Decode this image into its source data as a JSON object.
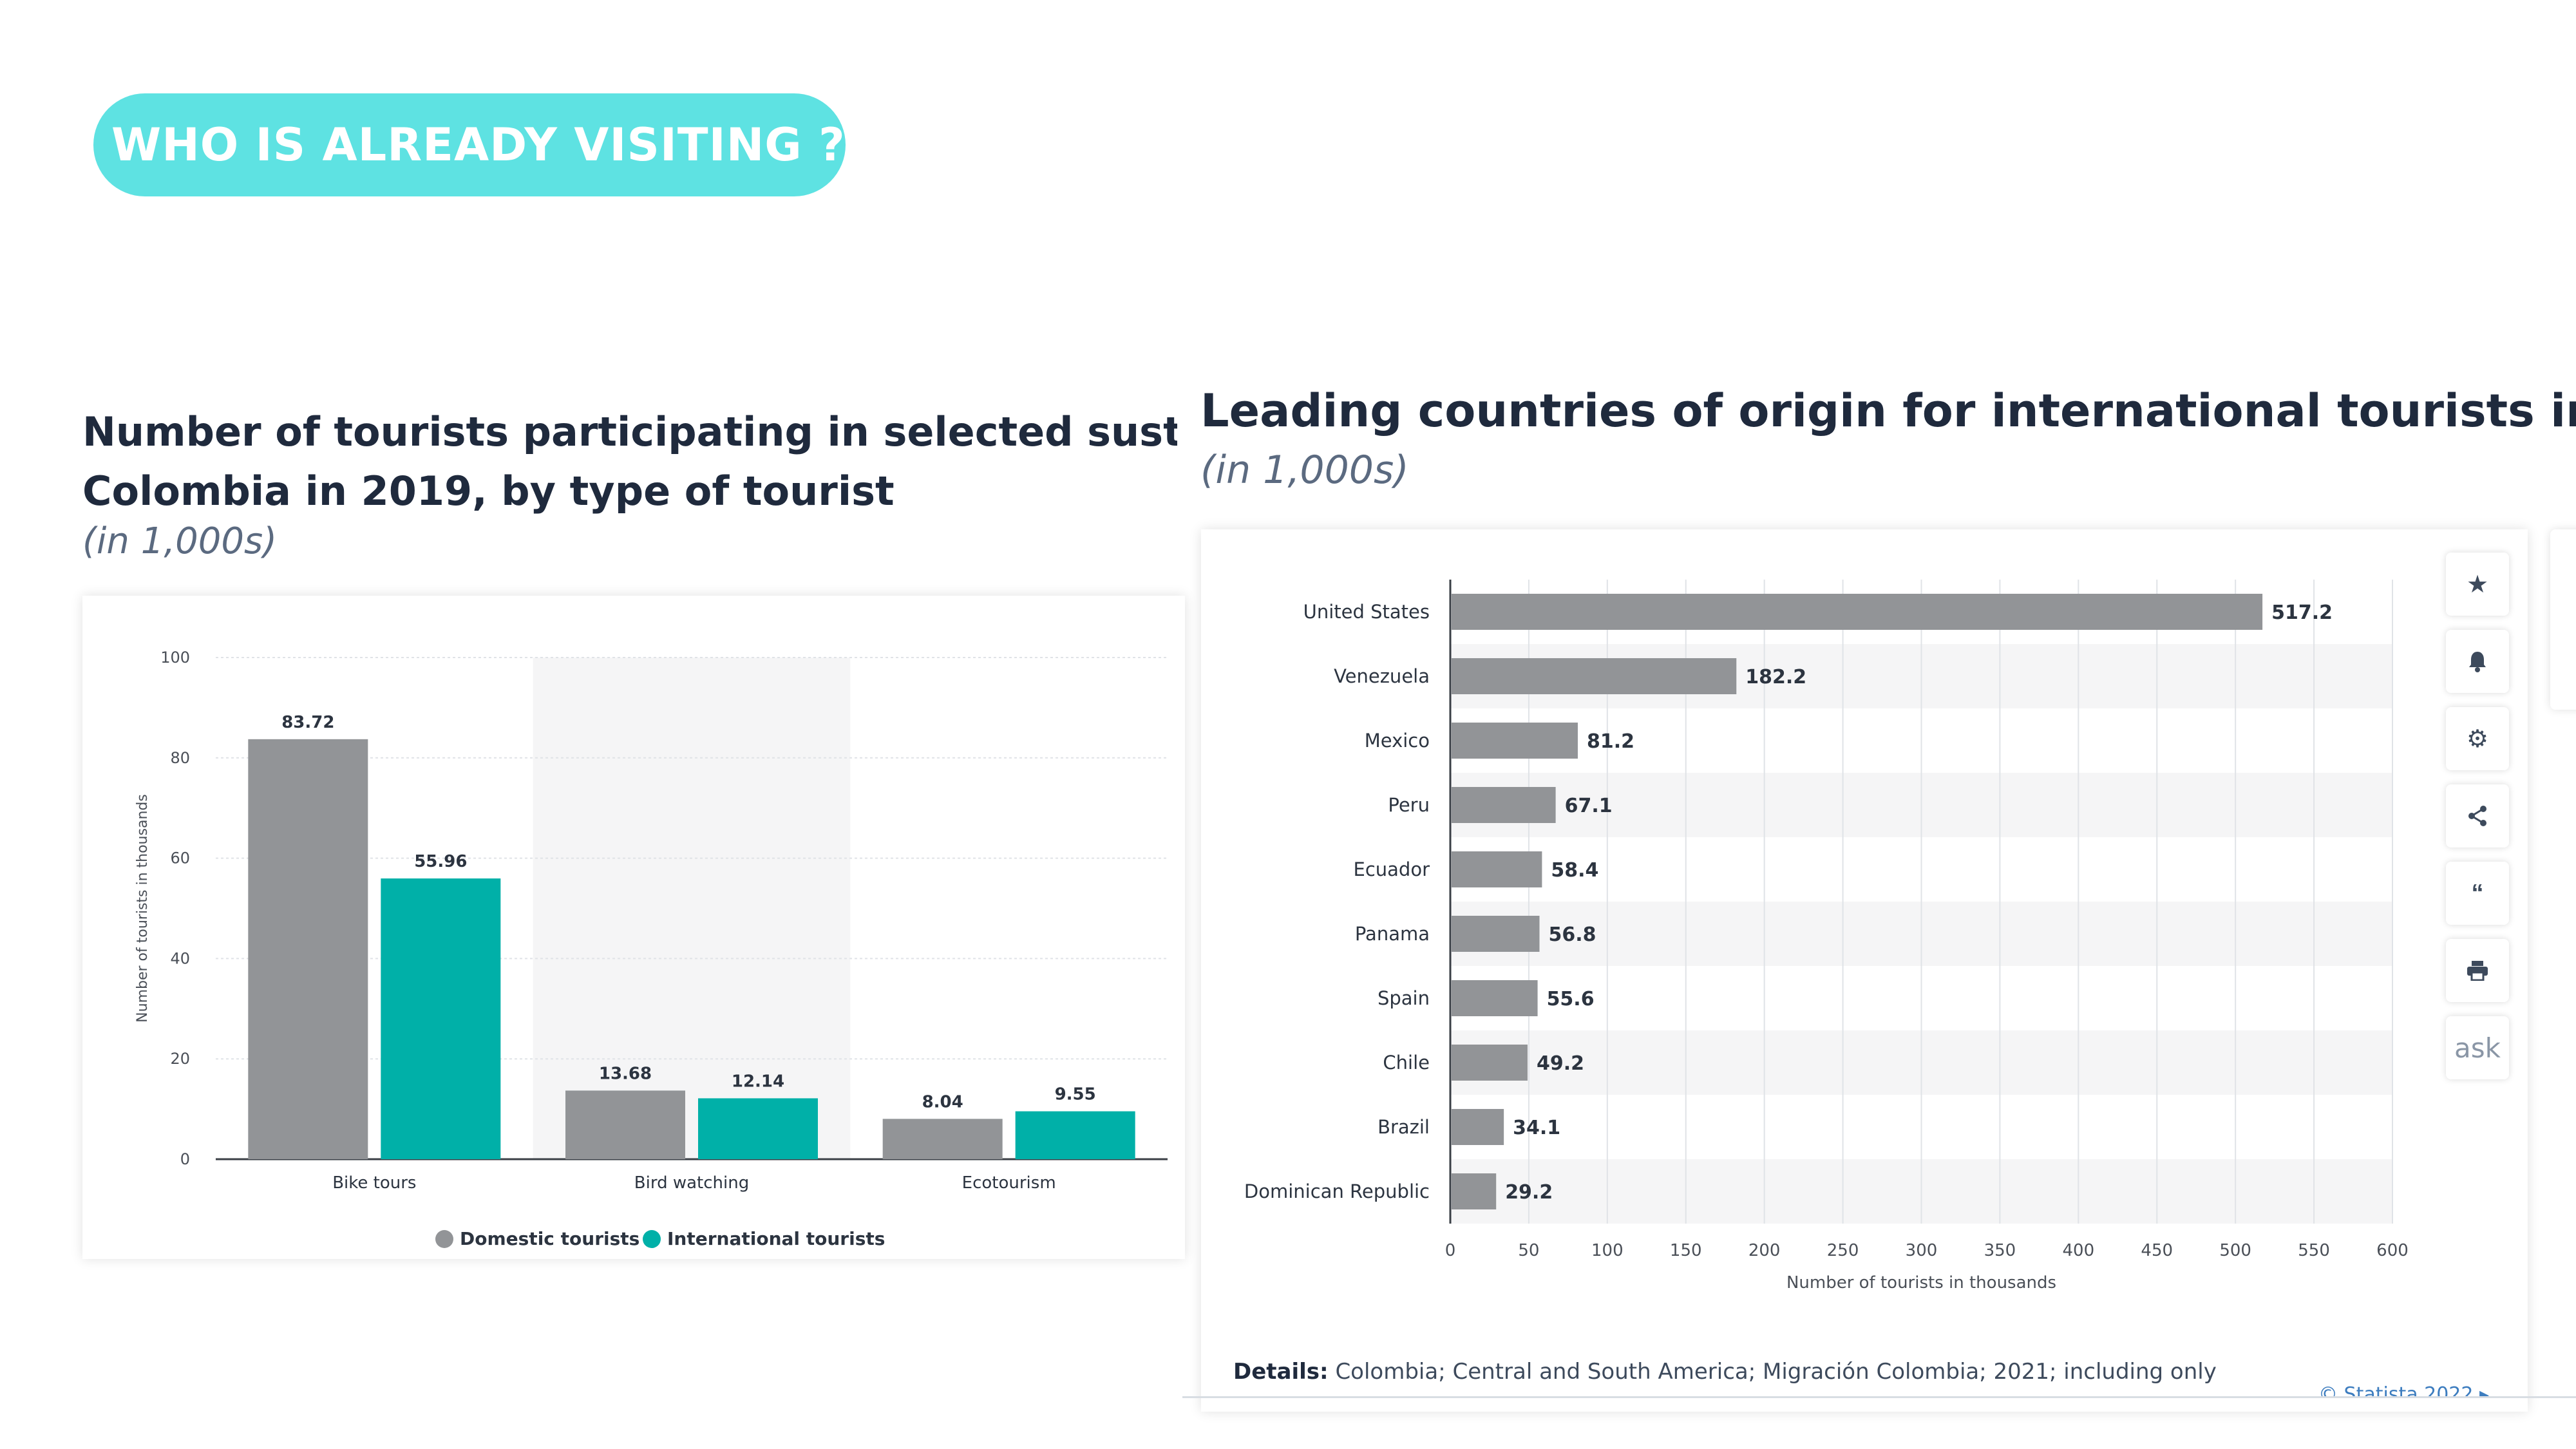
{
  "header": {
    "badge": "WHO IS ALREADY VISITING ?"
  },
  "left_chart": {
    "title_line1": "Number of tourists participating in selected sustainable",
    "title_line2": "Colombia in 2019, by type of tourist",
    "subtitle": "(in 1,000s)"
  },
  "right_chart": {
    "title": "Leading countries of origin for international tourists in Colomb",
    "subtitle": "(in 1,000s)",
    "details_label": "Details:",
    "details_text": "Colombia; Central and South America; Migración Colombia; 2021; including only",
    "copyright": "© Statista 2022 ▸"
  },
  "toolbar": {
    "icons": [
      "star-icon",
      "bell-icon",
      "gear-icon",
      "share-icon",
      "quote-icon",
      "print-icon",
      "ask-icon"
    ],
    "ask_label": "ask"
  },
  "colors": {
    "badge": "#5ee2e2",
    "domestic": "#929497",
    "international": "#00b0a8",
    "bar": "#929497"
  },
  "chart_data": [
    {
      "type": "bar",
      "categories": [
        "Bike tours",
        "Bird watching",
        "Ecotourism"
      ],
      "series": [
        {
          "name": "Domestic tourists",
          "values": [
            83.72,
            13.68,
            8.04
          ]
        },
        {
          "name": "International tourists",
          "values": [
            55.96,
            12.14,
            9.55
          ]
        }
      ],
      "value_labels": [
        [
          "83.72",
          "13.68",
          "8.04"
        ],
        [
          "55.96",
          "12.14",
          "9.55"
        ]
      ],
      "ylabel": "Number of tourists in thousands",
      "ylim": [
        0,
        100
      ],
      "yticks": [
        0,
        20,
        40,
        60,
        80,
        100
      ],
      "legend": "bottom"
    },
    {
      "type": "bar",
      "orientation": "horizontal",
      "categories": [
        "United States",
        "Venezuela",
        "Mexico",
        "Peru",
        "Ecuador",
        "Panama",
        "Spain",
        "Chile",
        "Brazil",
        "Dominican Republic"
      ],
      "values": [
        517.2,
        182.2,
        81.2,
        67.1,
        58.4,
        56.8,
        55.6,
        49.2,
        34.1,
        29.2
      ],
      "value_labels": [
        "517.2",
        "182.2",
        "81.2",
        "67.1",
        "58.4",
        "56.8",
        "55.6",
        "49.2",
        "34.1",
        "29.2"
      ],
      "xlabel": "Number of tourists in thousands",
      "xlim": [
        0,
        600
      ],
      "xticks": [
        0,
        50,
        100,
        150,
        200,
        250,
        300,
        350,
        400,
        450,
        500,
        550,
        600
      ]
    }
  ]
}
